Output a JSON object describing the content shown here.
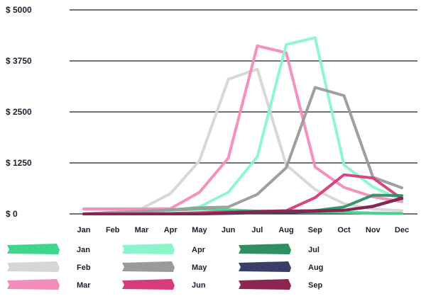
{
  "chart_data": {
    "type": "line",
    "title": "",
    "xlabel": "",
    "ylabel": "",
    "ylim": [
      0,
      5000
    ],
    "grid": true,
    "yticks": [
      {
        "value": 0,
        "label": "$ 0"
      },
      {
        "value": 1250,
        "label": "$ 1250"
      },
      {
        "value": 2500,
        "label": "$ 2500"
      },
      {
        "value": 3750,
        "label": "$ 3750"
      },
      {
        "value": 5000,
        "label": "$ 5000"
      }
    ],
    "categories": [
      "Jan",
      "Feb",
      "Mar",
      "Apr",
      "May",
      "Jun",
      "Jul",
      "Aug",
      "Sep",
      "Oct",
      "Nov",
      "Dec"
    ],
    "legend_position": "bottom",
    "series": [
      {
        "name": "Jan",
        "color": "#3dd68c",
        "values": [
          0,
          30,
          60,
          90,
          120,
          100,
          70,
          60,
          50,
          40,
          20,
          10
        ]
      },
      {
        "name": "Feb",
        "color": "#d6d6d6",
        "values": [
          130,
          130,
          130,
          500,
          1300,
          3300,
          3550,
          1200,
          600,
          250,
          120,
          80
        ]
      },
      {
        "name": "Mar",
        "color": "#f28cbb",
        "values": [
          120,
          120,
          120,
          130,
          530,
          1370,
          4120,
          3950,
          1150,
          650,
          420,
          300
        ]
      },
      {
        "name": "Apr",
        "color": "#8af5cb",
        "values": [
          0,
          20,
          50,
          90,
          170,
          530,
          1400,
          4150,
          4320,
          1200,
          660,
          340
        ]
      },
      {
        "name": "May",
        "color": "#9a9a9a",
        "values": [
          0,
          40,
          60,
          100,
          150,
          170,
          480,
          1130,
          3100,
          2900,
          900,
          640
        ]
      },
      {
        "name": "Jun",
        "color": "#d63b7c",
        "values": [
          0,
          0,
          0,
          10,
          30,
          50,
          60,
          80,
          400,
          960,
          880,
          370
        ]
      },
      {
        "name": "Jul",
        "color": "#2e8f63",
        "values": [
          0,
          0,
          0,
          0,
          0,
          20,
          40,
          60,
          80,
          170,
          460,
          450
        ]
      },
      {
        "name": "Aug",
        "color": "#393f68",
        "values": [
          0,
          0,
          0,
          0,
          0,
          10,
          30,
          40,
          60,
          90,
          180,
          380
        ]
      },
      {
        "name": "Sep",
        "color": "#8c2550",
        "values": [
          0,
          0,
          0,
          0,
          0,
          30,
          60,
          70,
          80,
          90,
          190,
          390
        ]
      }
    ]
  }
}
